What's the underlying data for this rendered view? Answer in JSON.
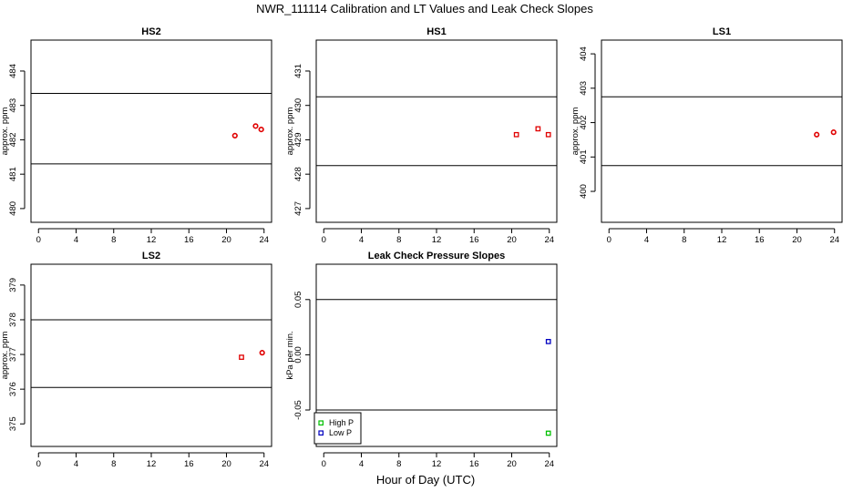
{
  "figure": {
    "title": "NWR_111114  Calibration and LT Values and Leak Check Slopes",
    "xlabel": "Hour of Day (UTC)"
  },
  "chart_data": [
    {
      "id": "hs2",
      "type": "scatter",
      "title": "HS2",
      "xlabel": "",
      "ylabel": "approx. ppm",
      "xlim": [
        -0.8,
        24.8
      ],
      "ylim": [
        479.6,
        484.9
      ],
      "xticks": [
        0,
        4,
        8,
        12,
        16,
        20,
        24
      ],
      "yticks": [
        480,
        481,
        482,
        483,
        484
      ],
      "hlines": [
        483.35,
        481.3
      ],
      "series": [
        {
          "color": "#e00000",
          "marker": "circle",
          "points": [
            [
              20.9,
              482.12
            ],
            [
              23.1,
              482.4
            ],
            [
              23.7,
              482.3
            ]
          ]
        }
      ]
    },
    {
      "id": "hs1",
      "type": "scatter",
      "title": "HS1",
      "xlabel": "",
      "ylabel": "approx. ppm",
      "xlim": [
        -0.8,
        24.8
      ],
      "ylim": [
        426.6,
        431.9
      ],
      "xticks": [
        0,
        4,
        8,
        12,
        16,
        20,
        24
      ],
      "yticks": [
        427,
        428,
        429,
        430,
        431
      ],
      "hlines": [
        430.25,
        428.25
      ],
      "series": [
        {
          "color": "#e00000",
          "marker": "square",
          "points": [
            [
              20.5,
              429.15
            ],
            [
              22.8,
              429.32
            ],
            [
              23.9,
              429.15
            ]
          ]
        }
      ]
    },
    {
      "id": "ls1",
      "type": "scatter",
      "title": "LS1",
      "xlabel": "",
      "ylabel": "approx. ppm",
      "xlim": [
        -0.8,
        24.8
      ],
      "ylim": [
        399.1,
        404.4
      ],
      "xticks": [
        0,
        4,
        8,
        12,
        16,
        20,
        24
      ],
      "yticks": [
        400,
        401,
        402,
        403,
        404
      ],
      "hlines": [
        402.75,
        400.75
      ],
      "series": [
        {
          "color": "#e00000",
          "marker": "circle",
          "points": [
            [
              22.1,
              401.65
            ],
            [
              23.9,
              401.72
            ]
          ]
        }
      ]
    },
    {
      "id": "ls2",
      "type": "scatter",
      "title": "LS2",
      "xlabel": "",
      "ylabel": "approx. ppm",
      "xlim": [
        -0.8,
        24.8
      ],
      "ylim": [
        374.35,
        379.6
      ],
      "xticks": [
        0,
        4,
        8,
        12,
        16,
        20,
        24
      ],
      "yticks": [
        375,
        376,
        377,
        378,
        379
      ],
      "hlines": [
        378.0,
        376.05
      ],
      "series": [
        {
          "color": "#e00000",
          "marker": "square",
          "points": [
            [
              21.6,
              376.92
            ]
          ]
        },
        {
          "color": "#e00000",
          "marker": "circle",
          "points": [
            [
              23.8,
              377.05
            ]
          ]
        }
      ]
    },
    {
      "id": "leak",
      "type": "scatter",
      "title": "Leak Check Pressure Slopes",
      "xlabel": "",
      "ylabel": "kPa per min.",
      "xlim": [
        -0.8,
        24.8
      ],
      "ylim": [
        -0.083,
        0.082
      ],
      "xticks": [
        0,
        4,
        8,
        12,
        16,
        20,
        24
      ],
      "yticks": [
        -0.05,
        0.0,
        0.05
      ],
      "ytick_labels": [
        "-0.05",
        "0.00",
        "0.05"
      ],
      "hlines": [
        0.05,
        -0.05
      ],
      "series": [
        {
          "name": "High P",
          "color": "#00c000",
          "marker": "square",
          "points": [
            [
              23.9,
              -0.071
            ]
          ]
        },
        {
          "name": "Low P",
          "color": "#0000c0",
          "marker": "square",
          "points": [
            [
              23.9,
              0.012
            ]
          ]
        }
      ],
      "legend": {
        "position": "bottom-left",
        "entries": [
          "High P",
          "Low P"
        ]
      }
    }
  ]
}
